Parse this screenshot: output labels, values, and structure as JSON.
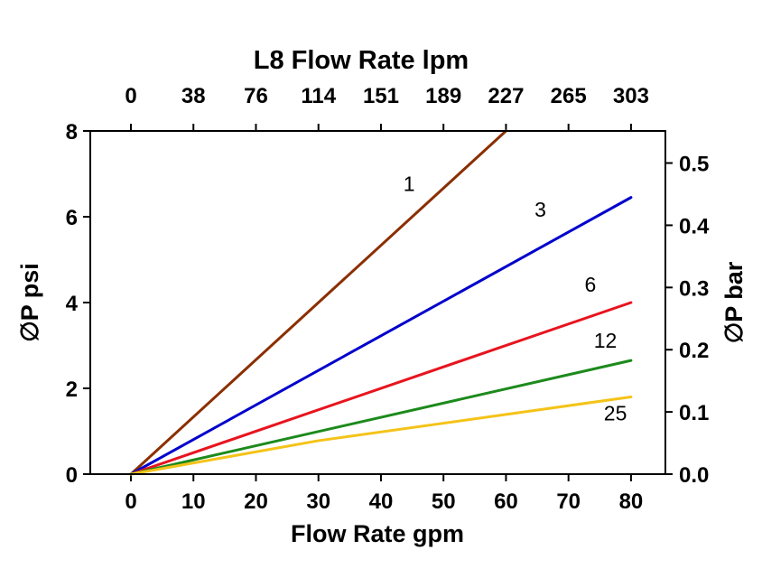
{
  "chart_data": {
    "type": "line",
    "title": "L8 Flow Rate lpm",
    "xlabel_top": "L8 Flow Rate lpm",
    "xlabel_bottom": "Flow Rate gpm",
    "ylabel_left": "∅P psi",
    "ylabel_right": "∅P bar",
    "xlim": [
      -6.5,
      85.5
    ],
    "ylim": [
      0,
      8
    ],
    "grid": false,
    "legend": "inline-labels-on-lines",
    "x_ticks_gpm": [
      0,
      10,
      20,
      30,
      40,
      50,
      60,
      70,
      80
    ],
    "x_ticks_lpm_labels": [
      "0",
      "38",
      "76",
      "114",
      "151",
      "189",
      "227",
      "265",
      "303"
    ],
    "y_ticks_psi": [
      0,
      2,
      4,
      6,
      8
    ],
    "y_ticks_bar": [
      0.0,
      0.1,
      0.2,
      0.3,
      0.4,
      0.5
    ],
    "psi_per_bar": 14.5038,
    "axis_color": "#000000",
    "series": [
      {
        "name": "1",
        "color": "#8b2f00",
        "points": [
          [
            0,
            0
          ],
          [
            60,
            8.0
          ]
        ],
        "label_pos": [
          44.5,
          6.6
        ]
      },
      {
        "name": "3",
        "color": "#0000cc",
        "points": [
          [
            0,
            0
          ],
          [
            80,
            6.45
          ]
        ],
        "label_pos": [
          65.5,
          6.0
        ]
      },
      {
        "name": "6",
        "color": "#e8141e",
        "points": [
          [
            0,
            0
          ],
          [
            80,
            4.0
          ]
        ],
        "label_pos": [
          73.5,
          4.25
        ]
      },
      {
        "name": "12",
        "color": "#1c8a1c",
        "points": [
          [
            0,
            0
          ],
          [
            80,
            2.65
          ]
        ],
        "label_pos": [
          75.9,
          2.95
        ]
      },
      {
        "name": "25",
        "color": "#f4c318",
        "points": [
          [
            0,
            0
          ],
          [
            30,
            0.78
          ],
          [
            80,
            1.8
          ]
        ],
        "label_pos": [
          77.5,
          1.25
        ]
      }
    ]
  }
}
